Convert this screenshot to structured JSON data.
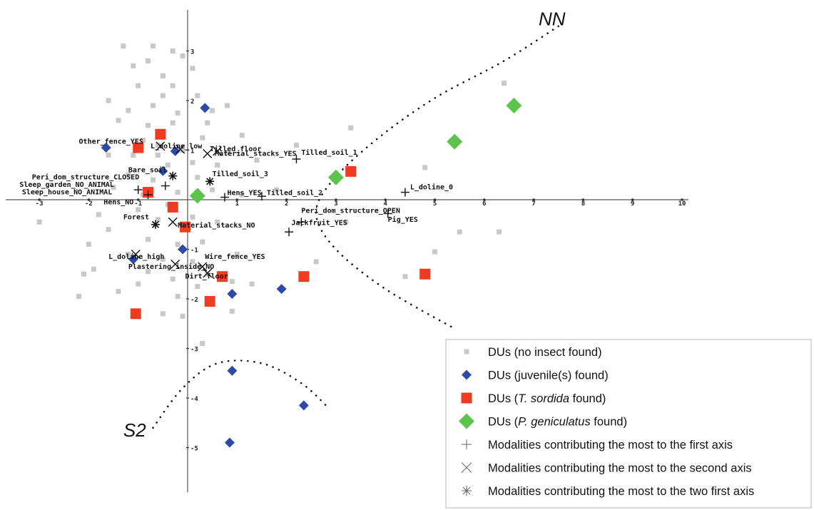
{
  "chart_data": {
    "type": "scatter",
    "xlim": [
      -3.6,
      10.3
    ],
    "ylim": [
      -5.9,
      3.9
    ],
    "grid": false,
    "legend_position": "bottom-right",
    "x_ticks": [
      -3,
      -2,
      -1,
      0,
      1,
      2,
      3,
      4,
      5,
      6,
      7,
      8,
      9,
      10
    ],
    "y_ticks": [
      -5,
      -4,
      -3,
      -2,
      -1,
      1,
      2,
      3
    ],
    "colors": {
      "no_insect": "#c8c8c8",
      "juvenile": "#2e4aa8",
      "t_sordida": "#ee3b22",
      "p_geniculatus": "#5cc44a",
      "axis": "#555555",
      "text": "#111111"
    },
    "region_labels": [
      {
        "text": "NN",
        "x": 7.1,
        "y": 3.65
      },
      {
        "text": "S2",
        "x": -1.3,
        "y": -4.65
      }
    ],
    "boundaries": [
      {
        "name": "NN",
        "points": [
          [
            7.5,
            3.5
          ],
          [
            6.4,
            2.8
          ],
          [
            5.0,
            2.05
          ],
          [
            3.8,
            1.2
          ],
          [
            2.9,
            0.35
          ],
          [
            2.6,
            -0.3
          ],
          [
            3.0,
            -1.0
          ],
          [
            4.0,
            -1.8
          ],
          [
            5.4,
            -2.6
          ]
        ]
      },
      {
        "name": "S2",
        "points": [
          [
            -0.7,
            -4.6
          ],
          [
            -0.1,
            -3.8
          ],
          [
            0.6,
            -3.3
          ],
          [
            1.5,
            -3.3
          ],
          [
            2.3,
            -3.7
          ],
          [
            2.85,
            -4.2
          ]
        ]
      }
    ],
    "series": [
      {
        "name": "DUs (no insect found)",
        "marker": "small-square",
        "points": [
          [
            -0.7,
            3.1
          ],
          [
            -0.3,
            3.0
          ],
          [
            -0.8,
            2.8
          ],
          [
            0.1,
            2.65
          ],
          [
            -1.1,
            2.7
          ],
          [
            -0.5,
            2.5
          ],
          [
            -1.0,
            2.3
          ],
          [
            -0.3,
            2.3
          ],
          [
            -0.5,
            2.1
          ],
          [
            0.2,
            2.1
          ],
          [
            -1.6,
            2.0
          ],
          [
            -0.7,
            1.9
          ],
          [
            -1.2,
            1.8
          ],
          [
            -0.2,
            1.75
          ],
          [
            0.5,
            1.8
          ],
          [
            -1.4,
            1.6
          ],
          [
            -0.8,
            1.5
          ],
          [
            -0.3,
            1.55
          ],
          [
            0.4,
            1.55
          ],
          [
            1.1,
            1.3
          ],
          [
            -0.9,
            1.2
          ],
          [
            0.3,
            1.25
          ],
          [
            -0.6,
            1.1
          ],
          [
            -0.1,
            1.0
          ],
          [
            0.8,
            0.95
          ],
          [
            -1.1,
            0.9
          ],
          [
            -0.4,
            0.7
          ],
          [
            0.1,
            0.75
          ],
          [
            0.6,
            0.7
          ],
          [
            1.4,
            0.8
          ],
          [
            -1.2,
            0.5
          ],
          [
            -0.7,
            0.4
          ],
          [
            0.2,
            0.45
          ],
          [
            -1.5,
            0.25
          ],
          [
            -0.9,
            0.1
          ],
          [
            -0.2,
            0.15
          ],
          [
            0.5,
            0.2
          ],
          [
            1.1,
            0.1
          ],
          [
            1.8,
            0.2
          ],
          [
            -0.4,
            -0.1
          ],
          [
            -1.0,
            -0.2
          ],
          [
            -1.8,
            -0.3
          ],
          [
            -0.6,
            -0.4
          ],
          [
            0.1,
            -0.35
          ],
          [
            0.6,
            -0.45
          ],
          [
            -3.0,
            -0.45
          ],
          [
            -1.6,
            -0.6
          ],
          [
            -0.8,
            -0.8
          ],
          [
            -0.2,
            -0.9
          ],
          [
            0.3,
            -0.85
          ],
          [
            -2.0,
            -0.9
          ],
          [
            -1.2,
            -1.1
          ],
          [
            -0.5,
            -1.2
          ],
          [
            0.1,
            -1.25
          ],
          [
            -1.9,
            -1.4
          ],
          [
            -0.8,
            -1.45
          ],
          [
            0.4,
            -1.5
          ],
          [
            -0.3,
            -1.6
          ],
          [
            -2.1,
            -1.5
          ],
          [
            -1.0,
            -1.7
          ],
          [
            0.2,
            -1.75
          ],
          [
            0.9,
            -1.65
          ],
          [
            -2.2,
            -1.95
          ],
          [
            -1.4,
            -1.85
          ],
          [
            -0.2,
            -1.95
          ],
          [
            0.5,
            -2.05
          ],
          [
            0.9,
            -2.25
          ],
          [
            1.3,
            -1.7
          ],
          [
            2.6,
            -1.25
          ],
          [
            -0.1,
            -2.35
          ],
          [
            3.2,
            -0.45
          ],
          [
            3.3,
            1.45
          ],
          [
            4.4,
            -1.55
          ],
          [
            5.0,
            -1.05
          ],
          [
            4.8,
            0.65
          ],
          [
            5.5,
            -0.65
          ],
          [
            6.3,
            -0.65
          ],
          [
            6.4,
            2.35
          ],
          [
            0.3,
            -2.9
          ],
          [
            -0.5,
            -2.3
          ],
          [
            1.0,
            -1.1
          ],
          [
            -1.6,
            0.9
          ],
          [
            0.8,
            1.9
          ],
          [
            2.2,
            1.1
          ],
          [
            -0.1,
            2.9
          ],
          [
            -1.3,
            3.1
          ],
          [
            -0.6,
            0.9
          ]
        ]
      },
      {
        "name": "DUs (juvenile(s) found)",
        "marker": "diamond",
        "points": [
          [
            0.35,
            1.85
          ],
          [
            -1.65,
            1.05
          ],
          [
            -1.0,
            1.05
          ],
          [
            -0.25,
            0.98
          ],
          [
            -0.5,
            0.58
          ],
          [
            -0.1,
            -1.0
          ],
          [
            -1.1,
            -1.2
          ],
          [
            0.45,
            -2.05
          ],
          [
            0.9,
            -1.9
          ],
          [
            1.9,
            -1.8
          ],
          [
            2.35,
            -1.55
          ],
          [
            0.9,
            -3.45
          ],
          [
            2.35,
            -4.15
          ],
          [
            0.85,
            -4.9
          ]
        ]
      },
      {
        "name": "DUs (T. sordida found)",
        "marker": "square",
        "points": [
          [
            -0.55,
            1.32
          ],
          [
            -1.0,
            1.05
          ],
          [
            -0.8,
            0.15
          ],
          [
            -0.3,
            -0.15
          ],
          [
            -0.05,
            -0.55
          ],
          [
            3.3,
            0.57
          ],
          [
            4.8,
            -1.5
          ],
          [
            2.35,
            -1.55
          ],
          [
            0.45,
            -2.05
          ],
          [
            0.7,
            -1.55
          ],
          [
            -1.05,
            -2.3
          ]
        ]
      },
      {
        "name": "DUs (P. geniculatus found)",
        "marker": "diamond-large",
        "points": [
          [
            6.6,
            1.9
          ],
          [
            5.4,
            1.17
          ],
          [
            3.0,
            0.45
          ],
          [
            0.2,
            0.08
          ]
        ]
      },
      {
        "name": "Modalities contributing the most to the first axis",
        "marker": "plus",
        "points": [
          [
            -1.0,
            0.2
          ],
          [
            -0.8,
            0.1
          ],
          [
            -0.45,
            0.28
          ],
          [
            0.75,
            0.05
          ],
          [
            1.5,
            0.07
          ],
          [
            2.2,
            0.82
          ],
          [
            2.3,
            -0.45
          ],
          [
            2.05,
            -0.65
          ],
          [
            4.05,
            -0.28
          ],
          [
            4.4,
            0.15
          ]
        ]
      },
      {
        "name": "Modalities contributing the most to the second axis",
        "marker": "x",
        "points": [
          [
            -0.55,
            1.08
          ],
          [
            -0.15,
            1.02
          ],
          [
            0.4,
            0.93
          ],
          [
            0.6,
            0.98
          ],
          [
            -0.3,
            -0.45
          ],
          [
            -1.05,
            -1.1
          ],
          [
            -0.25,
            -1.3
          ],
          [
            0.3,
            -1.35
          ],
          [
            0.4,
            -1.48
          ]
        ]
      },
      {
        "name": "Modalities contributing the most to the two first axis",
        "marker": "asterisk",
        "points": [
          [
            -0.3,
            0.48
          ],
          [
            0.45,
            0.37
          ],
          [
            -0.65,
            -0.5
          ]
        ]
      }
    ],
    "modality_labels": [
      {
        "text": "Other_fence_YES",
        "x": -2.2,
        "y": 1.17
      },
      {
        "text": "L_doline_low",
        "x": -0.75,
        "y": 1.08
      },
      {
        "text": "Tilled_floor",
        "x": 0.45,
        "y": 1.02
      },
      {
        "text": "Material_stacks_YES",
        "x": 0.55,
        "y": 0.93
      },
      {
        "text": "Tilled_soil_1",
        "x": 2.3,
        "y": 0.95
      },
      {
        "text": "Bare_soil",
        "x": -1.2,
        "y": 0.6
      },
      {
        "text": "Peri_dom_structure_CLOSED",
        "x": -3.15,
        "y": 0.45
      },
      {
        "text": "Tilled_soil_3",
        "x": 0.5,
        "y": 0.52
      },
      {
        "text": "Sleep_garden_NO_ANIMAL",
        "x": -3.4,
        "y": 0.3
      },
      {
        "text": "Sleep_house_NO_ANIMAL",
        "x": -3.35,
        "y": 0.15
      },
      {
        "text": "Hens_YES",
        "x": 0.8,
        "y": 0.14
      },
      {
        "text": "Tilled_soil_2",
        "x": 1.6,
        "y": 0.14
      },
      {
        "text": "L_doline_0",
        "x": 4.5,
        "y": 0.25
      },
      {
        "text": "Hens_NO",
        "x": -1.7,
        "y": -0.05
      },
      {
        "text": "Peri_dom_structure_OPEN",
        "x": 2.3,
        "y": -0.22
      },
      {
        "text": "Forest",
        "x": -1.3,
        "y": -0.35
      },
      {
        "text": "Pig_YES",
        "x": 4.05,
        "y": -0.4
      },
      {
        "text": "Jackfruit_YES",
        "x": 2.1,
        "y": -0.47
      },
      {
        "text": "Material_stacks_NO",
        "x": -0.2,
        "y": -0.52
      },
      {
        "text": "L_doline_high",
        "x": -1.6,
        "y": -1.15
      },
      {
        "text": "Wire_fence_YES",
        "x": 0.35,
        "y": -1.15
      },
      {
        "text": "Plastering_inside_NO",
        "x": -1.2,
        "y": -1.35
      },
      {
        "text": "Dirt_floor",
        "x": -0.05,
        "y": -1.55
      }
    ]
  },
  "legend": {
    "items": [
      {
        "marker": "small-square",
        "text": "DUs (no insect found)"
      },
      {
        "marker": "diamond",
        "text": "DUs (juvenile(s) found)"
      },
      {
        "marker": "square",
        "pre": "DUs (",
        "italic": "T. sordida",
        "post": " found)"
      },
      {
        "marker": "diamond-large",
        "pre": "DUs (",
        "italic": "P. geniculatus",
        "post": " found)"
      },
      {
        "marker": "plus",
        "text": "Modalities contributing the most to the first axis"
      },
      {
        "marker": "x",
        "text": "Modalities contributing the most to the second axis"
      },
      {
        "marker": "asterisk",
        "text": "Modalities contributing the most to the two first axis"
      }
    ]
  }
}
